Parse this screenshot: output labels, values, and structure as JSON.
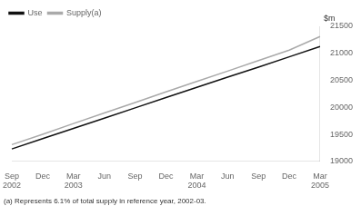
{
  "chart_data": {
    "type": "line",
    "ylabel": "$m",
    "footnote": "(a) Represents 6.1% of total supply in reference year, 2002-03.",
    "categories": [
      "Sep\n2002",
      "Dec",
      "Mar\n2003",
      "Jun",
      "Sep",
      "Dec",
      "Mar\n2004",
      "Jun",
      "Sep",
      "Dec",
      "Mar\n2005"
    ],
    "series": [
      {
        "name": "Use",
        "color": "#111111",
        "values": [
          19230,
          19420,
          19610,
          19800,
          19990,
          20180,
          20370,
          20560,
          20745,
          20935,
          21125
        ]
      },
      {
        "name": "Supply(a)",
        "color": "#aaaaaa",
        "values": [
          19310,
          19500,
          19700,
          19895,
          20090,
          20285,
          20480,
          20670,
          20865,
          21060,
          21310
        ]
      }
    ],
    "ylim": [
      19000,
      21500
    ],
    "yticks": [
      19000,
      19500,
      20000,
      20500,
      21000,
      21500
    ],
    "grid": false,
    "legend": "upper left"
  }
}
